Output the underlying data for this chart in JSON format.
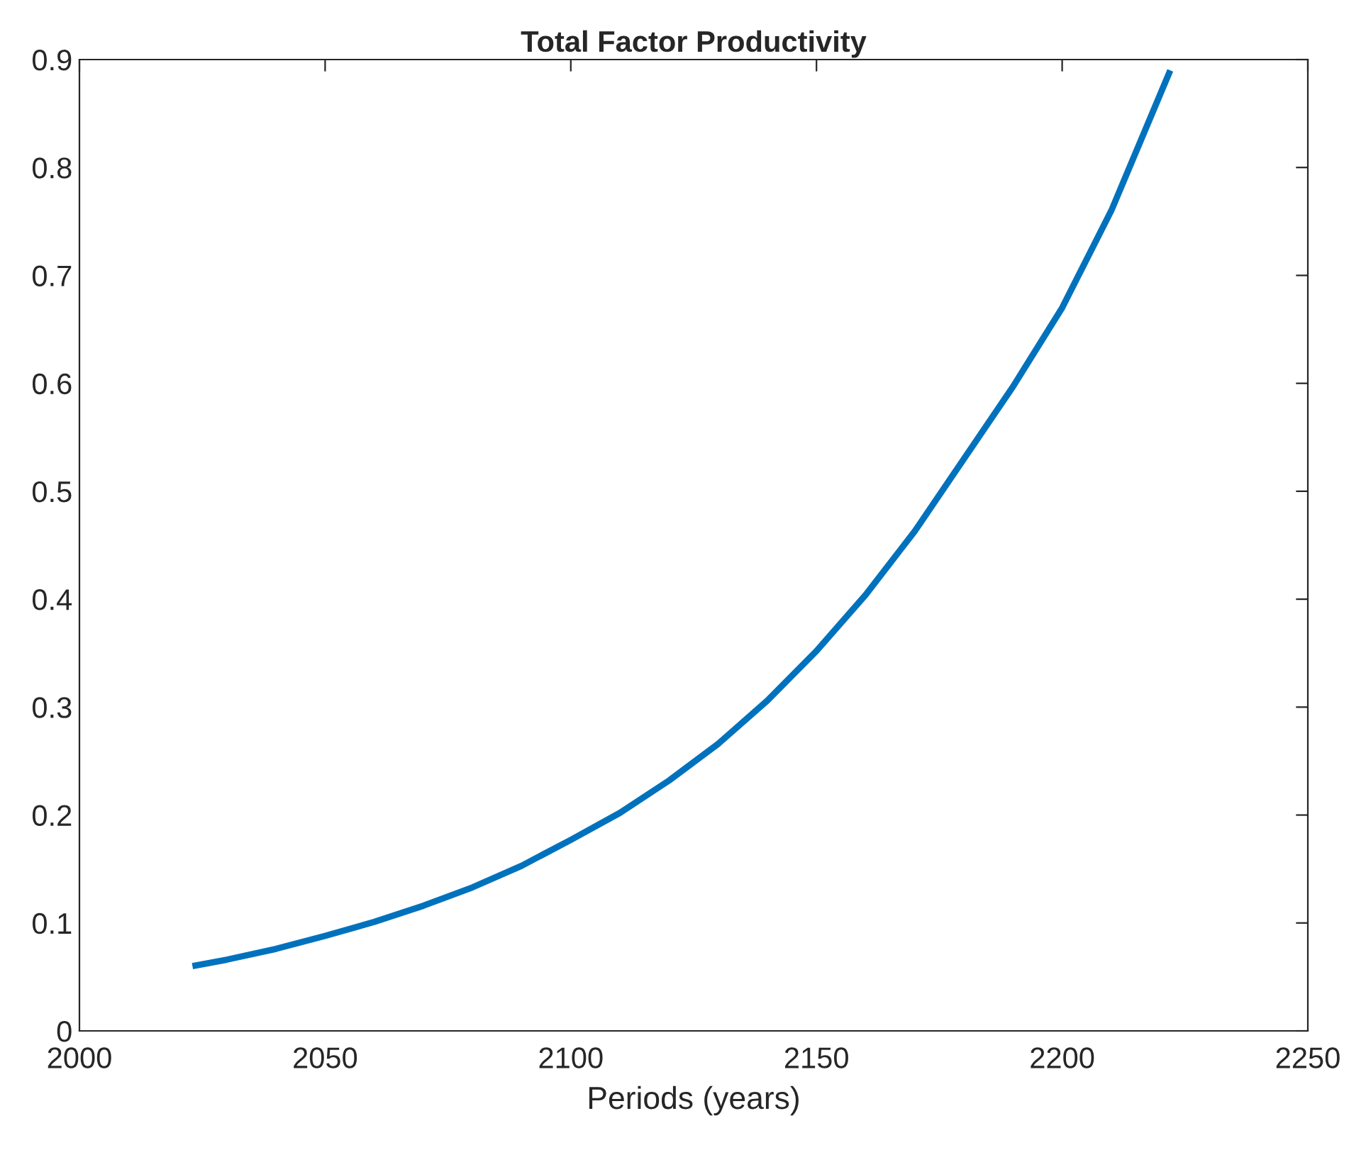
{
  "chart_data": {
    "type": "line",
    "title": "Total Factor Productivity",
    "xlabel": "Periods (years)",
    "x": [
      2023,
      2030,
      2040,
      2050,
      2060,
      2070,
      2080,
      2090,
      2100,
      2110,
      2120,
      2130,
      2140,
      2150,
      2160,
      2170,
      2180,
      2190,
      2200,
      2210,
      2222
    ],
    "series": [
      {
        "color": "#0072bd",
        "values": [
          0.06,
          0.066,
          0.076,
          0.088,
          0.101,
          0.116,
          0.133,
          0.153,
          0.177,
          0.202,
          0.232,
          0.266,
          0.306,
          0.352,
          0.404,
          0.463,
          0.53,
          0.597,
          0.67,
          0.76,
          0.89
        ]
      }
    ],
    "xlim": [
      2000,
      2250
    ],
    "xticks": [
      2000,
      2050,
      2100,
      2150,
      2200,
      2250
    ],
    "ylim": [
      0,
      0.9
    ],
    "yticks": [
      0,
      0.1,
      0.2,
      0.3,
      0.4,
      0.5,
      0.6,
      0.7,
      0.8,
      0.9
    ],
    "grid": false,
    "legend": false,
    "marker": "none",
    "line_style": "solid"
  }
}
